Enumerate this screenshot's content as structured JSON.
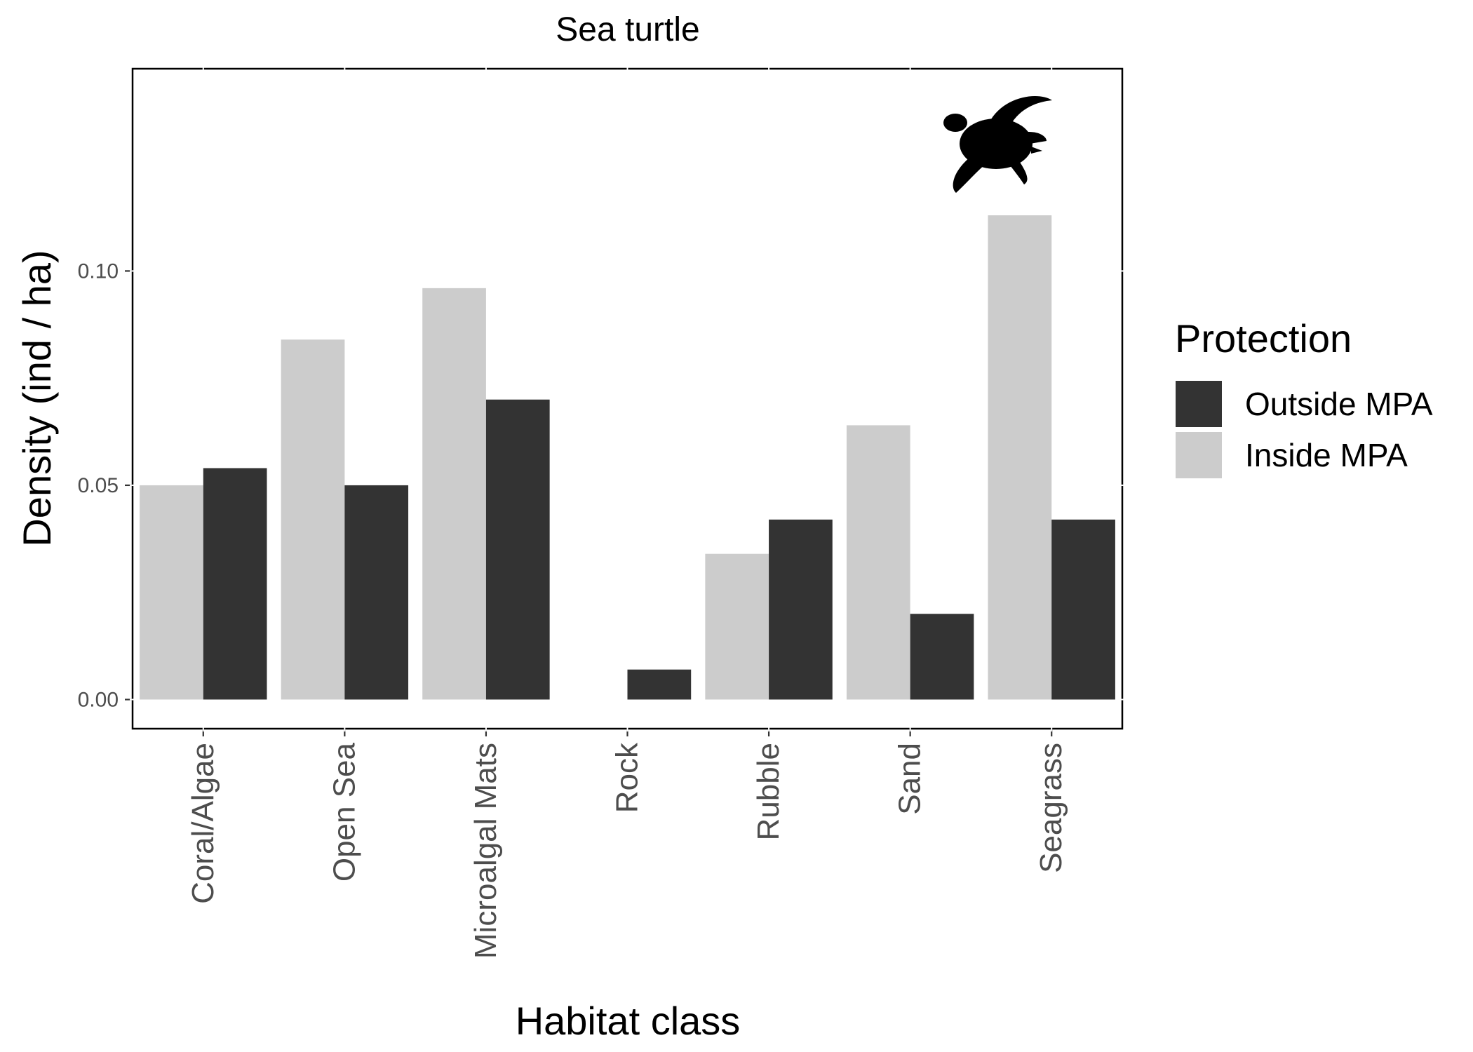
{
  "chart_data": {
    "type": "bar",
    "title": "Sea turtle",
    "xlabel": "Habitat class",
    "ylabel": "Density (ind / ha)",
    "categories": [
      "Coral/Algae",
      "Open Sea",
      "Microalgal Mats",
      "Rock",
      "Rubble",
      "Sand",
      "Seagrass"
    ],
    "series": [
      {
        "name": "Inside MPA",
        "color": "#cccccc",
        "values": [
          0.05,
          0.084,
          0.096,
          0.0,
          0.034,
          0.064,
          0.113
        ]
      },
      {
        "name": "Outside MPA",
        "color": "#333333",
        "values": [
          0.054,
          0.05,
          0.07,
          0.007,
          0.042,
          0.02,
          0.042
        ]
      }
    ],
    "ylim": [
      -0.0068,
      0.1472
    ],
    "yticks": [
      0.0,
      0.05,
      0.1
    ],
    "ytick_labels": [
      "0.00",
      "0.05",
      "0.10"
    ],
    "grid": false,
    "legend": {
      "title": "Protection",
      "position": "right",
      "entries": [
        {
          "label": "Outside MPA",
          "color": "#333333"
        },
        {
          "label": "Inside MPA",
          "color": "#cccccc"
        }
      ]
    },
    "icon": "sea-turtle-silhouette-icon"
  }
}
